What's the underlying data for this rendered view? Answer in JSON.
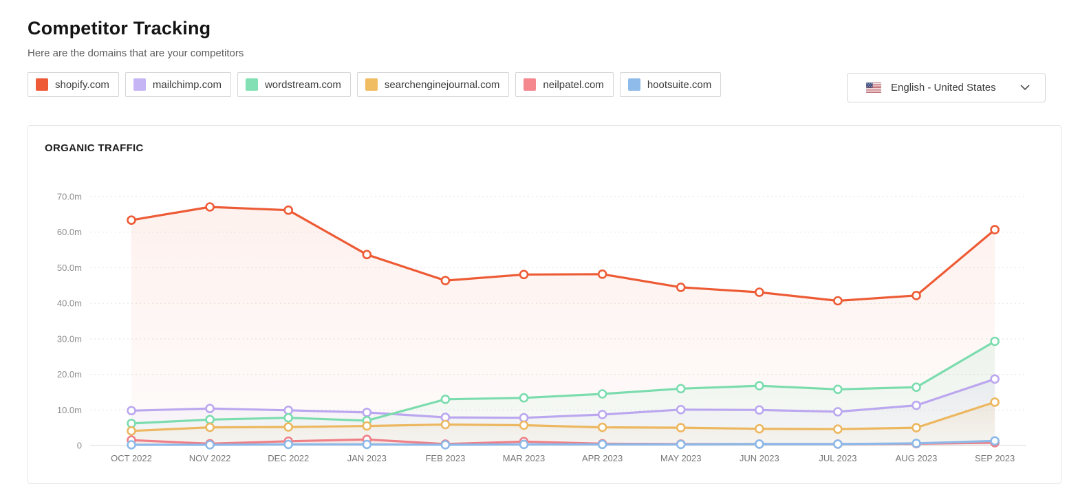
{
  "page": {
    "title": "Competitor Tracking",
    "subtitle": "Here are the domains that are your competitors"
  },
  "competitors": [
    {
      "label": "shopify.com",
      "color": "#EE5A36"
    },
    {
      "label": "mailchimp.com",
      "color": "#C6B5F4"
    },
    {
      "label": "wordstream.com",
      "color": "#83E0B4"
    },
    {
      "label": "searchenginejournal.com",
      "color": "#F1BD62"
    },
    {
      "label": "neilpatel.com",
      "color": "#F5878F"
    },
    {
      "label": "hootsuite.com",
      "color": "#8FBBEA"
    }
  ],
  "language_selector": {
    "label": "English - United States",
    "flag_icon": "us-flag-icon",
    "chevron_icon": "chevron-down-icon"
  },
  "chart_card": {
    "title": "ORGANIC TRAFFIC"
  },
  "chart_data": {
    "type": "line",
    "title": "ORGANIC TRAFFIC",
    "unit": "millions of visits",
    "x_labels": [
      "OCT 2022",
      "NOV 2022",
      "DEC 2022",
      "JAN 2023",
      "FEB 2023",
      "MAR 2023",
      "APR 2023",
      "MAY 2023",
      "JUN 2023",
      "JUL 2023",
      "AUG 2023",
      "SEP 2023"
    ],
    "y_ticks": [
      {
        "value": 0,
        "label": "0"
      },
      {
        "value": 10,
        "label": "10.0m"
      },
      {
        "value": 20,
        "label": "20.0m"
      },
      {
        "value": 30,
        "label": "30.0m"
      },
      {
        "value": 40,
        "label": "40.0m"
      },
      {
        "value": 50,
        "label": "50.0m"
      },
      {
        "value": 60,
        "label": "60.0m"
      },
      {
        "value": 70,
        "label": "70.0m"
      }
    ],
    "ylim": [
      0,
      75.5
    ],
    "grid": "horizontal-dashed",
    "legend_position": "top-chips",
    "series": [
      {
        "name": "shopify.com",
        "color": "#ED5B35",
        "values": [
          63.4,
          67.1,
          66.2,
          53.7,
          46.4,
          48.1,
          48.2,
          44.5,
          43.1,
          40.7,
          42.2,
          60.7
        ]
      },
      {
        "name": "mailchimp.com",
        "color": "#BBA7EF",
        "values": [
          9.8,
          10.4,
          9.9,
          9.3,
          7.9,
          7.8,
          8.7,
          10.1,
          10.0,
          9.5,
          11.3,
          18.7
        ]
      },
      {
        "name": "wordstream.com",
        "color": "#7BDCAE",
        "values": [
          6.2,
          7.3,
          7.8,
          7.0,
          13.0,
          13.4,
          14.5,
          16.0,
          16.8,
          15.8,
          16.4,
          29.3
        ]
      },
      {
        "name": "searchenginejournal.com",
        "color": "#ECB75F",
        "values": [
          4.1,
          5.1,
          5.2,
          5.5,
          5.9,
          5.7,
          5.1,
          5.0,
          4.7,
          4.6,
          5.0,
          12.2
        ]
      },
      {
        "name": "neilpatel.com",
        "color": "#EF7F87",
        "values": [
          1.5,
          0.5,
          1.2,
          1.7,
          0.4,
          1.1,
          0.5,
          0.4,
          0.4,
          0.4,
          0.5,
          0.8
        ]
      },
      {
        "name": "hootsuite.com",
        "color": "#8CB9E9",
        "values": [
          0.2,
          0.2,
          0.3,
          0.3,
          0.2,
          0.3,
          0.3,
          0.3,
          0.4,
          0.4,
          0.6,
          1.3
        ]
      }
    ]
  }
}
